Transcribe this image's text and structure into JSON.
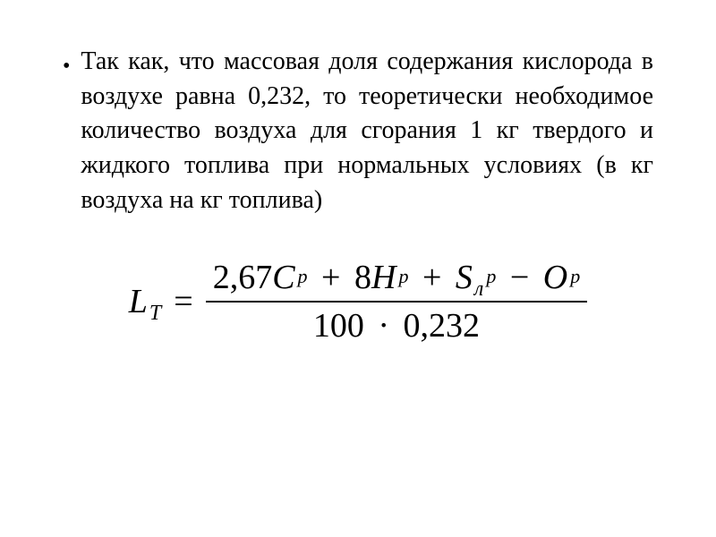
{
  "paragraph": {
    "bullet": "•",
    "text": "Так как, что массовая доля содержания кислорода в воздухе равна 0,232, то теоретически необходимое количество воздуха для сгорания 1 кг твердого и жидкого топлива при нормальных условиях (в кг воздуха на кг топлива)"
  },
  "formula": {
    "lhs_var": "L",
    "lhs_sub": "T",
    "equals": "=",
    "numerator": {
      "term1_coef": "2,67",
      "term1_var": "C",
      "term1_sup": "p",
      "op1": "+",
      "term2_coef": "8",
      "term2_var": "H",
      "term2_sup": "p",
      "op2": "+",
      "term3_var": "S",
      "term3_sub": "л",
      "term3_sup": "p",
      "op3": "−",
      "term4_var": "O",
      "term4_sup": "p"
    },
    "denominator": {
      "val1": "100",
      "dot": "·",
      "val2": "0,232"
    },
    "font_family": "Times New Roman",
    "text_color": "#000000",
    "background_color": "#ffffff",
    "paragraph_fontsize": 28,
    "formula_fontsize": 38,
    "sup_fontsize": 22,
    "sub_fontsize": 24
  }
}
